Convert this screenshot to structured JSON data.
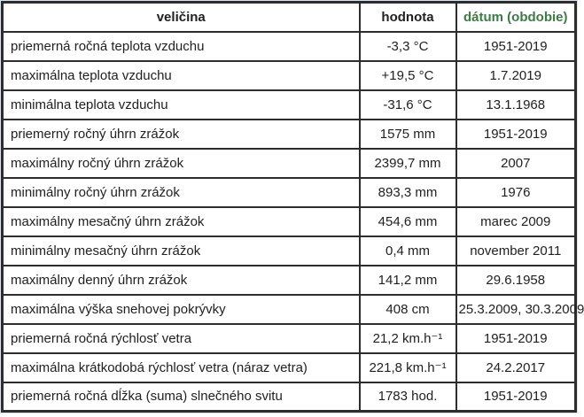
{
  "colors": {
    "border": "#2d2d2d",
    "text": "#212121",
    "date_header_green": "#3a7d44",
    "background": "#ffffff"
  },
  "table": {
    "headers": [
      "veličina",
      "hodnota",
      "dátum (obdobie)"
    ],
    "rows": [
      {
        "quantity": "priemerná ročná teplota vzduchu",
        "value": "-3,3 °C",
        "date": "1951-2019"
      },
      {
        "quantity": "maximálna teplota vzduchu",
        "value": "+19,5 °C",
        "date": "1.7.2019"
      },
      {
        "quantity": "minimálna teplota vzduchu",
        "value": "-31,6 °C",
        "date": "13.1.1968"
      },
      {
        "quantity": "priemerný ročný úhrn zrážok",
        "value": "1575 mm",
        "date": "1951-2019"
      },
      {
        "quantity": "maximálny ročný úhrn zrážok",
        "value": "2399,7 mm",
        "date": "2007"
      },
      {
        "quantity": "minimálny ročný úhrn zrážok",
        "value": "893,3 mm",
        "date": "1976"
      },
      {
        "quantity": "maximálny mesačný úhrn zrážok",
        "value": "454,6 mm",
        "date": "marec 2009"
      },
      {
        "quantity": "minimálny mesačný úhrn zrážok",
        "value": "0,4 mm",
        "date": "november 2011"
      },
      {
        "quantity": "maximálny denný úhrn zrážok",
        "value": "141,2 mm",
        "date": "29.6.1958"
      },
      {
        "quantity": "maximálna výška snehovej pokrývky",
        "value": "408 cm",
        "date": "25.3.2009, 30.3.2009"
      },
      {
        "quantity": "priemerná ročná rýchlosť vetra",
        "value": "21,2 km.h⁻¹",
        "date": "1951-2019"
      },
      {
        "quantity": "maximálna krátkodobá rýchlosť vetra (náraz vetra)",
        "value": "221,8 km.h⁻¹",
        "date": "24.2.2017"
      },
      {
        "quantity": "priemerná ročná dĺžka (suma) slnečného svitu",
        "value": "1783 hod.",
        "date": "1951-2019"
      }
    ]
  }
}
